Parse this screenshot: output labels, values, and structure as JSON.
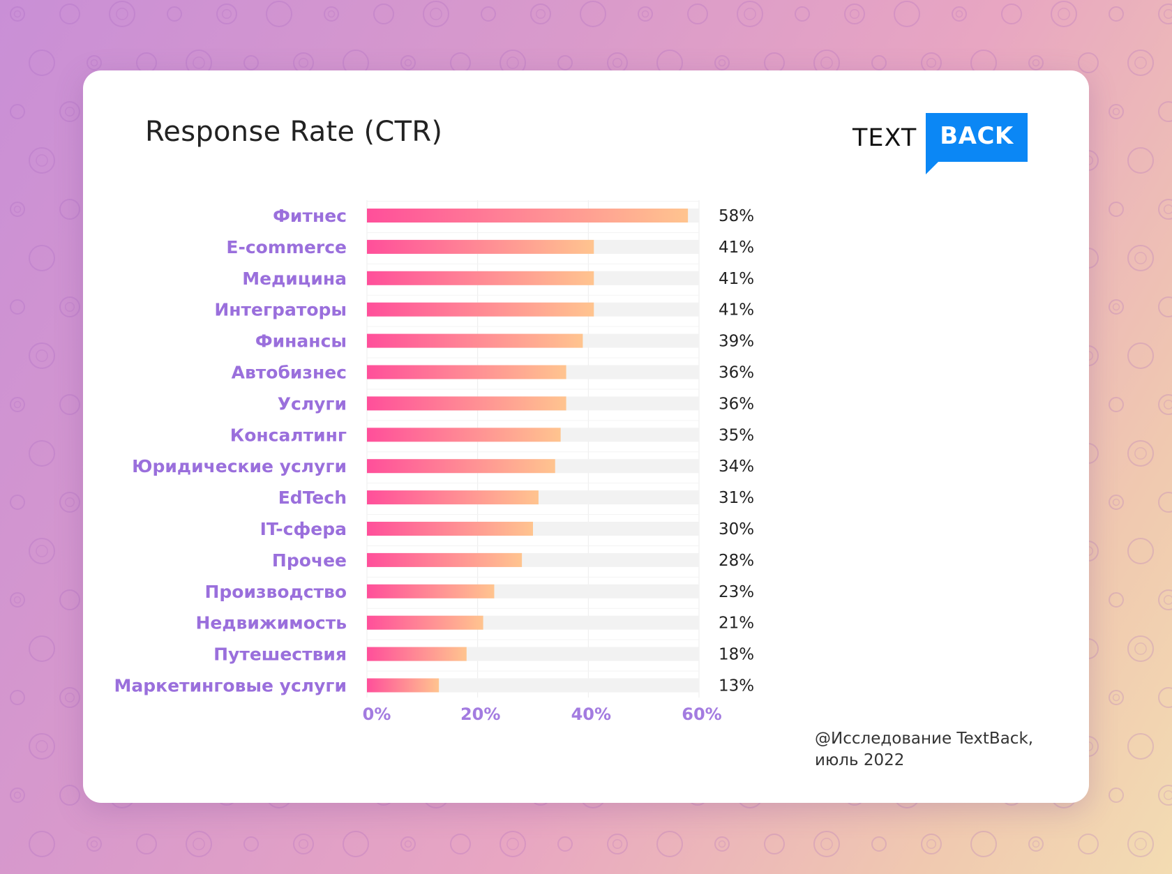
{
  "colors": {
    "bar_start": "#ff4f9a",
    "bar_end": "#ffc48f",
    "track": "#f2f2f2",
    "category_label": "#9a6fdc",
    "tick_label": "#a37be0",
    "value_label": "#222222",
    "logo_blue": "#0b87f5"
  },
  "header": {
    "title": "Response Rate (CTR)"
  },
  "logo": {
    "text_part": "TEXT",
    "box_part": "BACK"
  },
  "footnote": {
    "line1": "@Исследование TextBack,",
    "line2": "июль 2022"
  },
  "chart_data": {
    "type": "bar",
    "orientation": "horizontal",
    "title": "Response Rate (CTR)",
    "categories": [
      "Фитнес",
      "E-commerce",
      "Медицина",
      "Интеграторы",
      "Финансы",
      "Автобизнес",
      "Услуги",
      "Консалтинг",
      "Юридические услуги",
      "EdTech",
      "IT-сфера",
      "Прочее",
      "Производство",
      "Недвижимость",
      "Путешествия",
      "Маркетинговые услуги"
    ],
    "values": [
      58,
      41,
      41,
      41,
      39,
      36,
      36,
      35,
      34,
      31,
      30,
      28,
      23,
      21,
      18,
      13
    ],
    "value_labels": [
      "58%",
      "41%",
      "41%",
      "41%",
      "39%",
      "36%",
      "36%",
      "35%",
      "34%",
      "31%",
      "30%",
      "28%",
      "23%",
      "21%",
      "18%",
      "13%"
    ],
    "xlim": [
      0,
      60
    ],
    "x_ticks": [
      0,
      20,
      40,
      60
    ],
    "x_tick_labels": [
      "0%",
      "20%",
      "40%",
      "60%"
    ],
    "grid": true,
    "legend": "none"
  }
}
